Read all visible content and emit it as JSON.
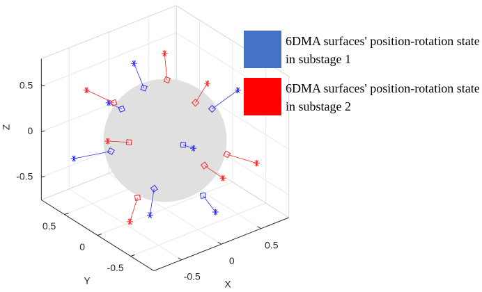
{
  "chart_data": {
    "type": "scatter3d",
    "xlabel": "X",
    "ylabel": "Y",
    "zlabel": "Z",
    "xlim": [
      -0.85,
      0.85
    ],
    "ylim": [
      -0.85,
      0.85
    ],
    "zlim": [
      -0.75,
      0.8
    ],
    "xticks": [
      -0.5,
      0,
      0.5
    ],
    "yticks": [
      -0.5,
      0,
      0.5
    ],
    "zticks": [
      -0.5,
      0,
      0.5
    ],
    "grid": true,
    "sphere_radius": 0.59,
    "sphere_color": "#e0e0e0",
    "legend": "upper right",
    "series": [
      {
        "name": "6DMA surfaces' position-rotation state in substage 1",
        "color": "#4472c4",
        "marker_color": "#2b2bff",
        "square_x": [
          0.0,
          0.45,
          -0.23,
          0.12,
          -0.44,
          -0.23,
          0.12
        ],
        "square_y": [
          0.32,
          -0.17,
          0.38,
          -0.13,
          0.29,
          -0.11,
          -0.43
        ],
        "square_z": [
          0.43,
          0.27,
          0.25,
          -0.03,
          -0.1,
          -0.4,
          -0.45
        ],
        "tip_x": [
          0.0,
          0.7,
          -0.31,
          0.19,
          -0.74,
          -0.34,
          0.16
        ],
        "tip_y": [
          0.47,
          -0.26,
          0.48,
          -0.2,
          0.49,
          -0.18,
          -0.57
        ],
        "tip_z": [
          0.63,
          0.43,
          0.3,
          -0.06,
          -0.17,
          -0.62,
          -0.58
        ]
      },
      {
        "name": "6DMA surfaces' position-rotation state in substage 2",
        "color": "#ff0000",
        "marker_color": "#ff2020",
        "square_x": [
          0.2,
          0.34,
          -0.27,
          -0.28,
          0.42,
          0.22,
          -0.38
        ],
        "square_y": [
          0.21,
          -0.05,
          0.45,
          0.21,
          -0.43,
          -0.33,
          -0.04
        ],
        "square_z": [
          0.5,
          0.32,
          0.3,
          -0.02,
          -0.1,
          -0.2,
          -0.48
        ],
        "tip_x": [
          0.26,
          0.49,
          -0.44,
          -0.43,
          0.62,
          0.32,
          -0.51
        ],
        "tip_y": [
          0.32,
          -0.05,
          0.66,
          0.35,
          -0.64,
          -0.49,
          -0.08
        ],
        "tip_z": [
          0.72,
          0.48,
          0.4,
          -0.02,
          -0.17,
          -0.3,
          -0.68
        ]
      }
    ]
  }
}
